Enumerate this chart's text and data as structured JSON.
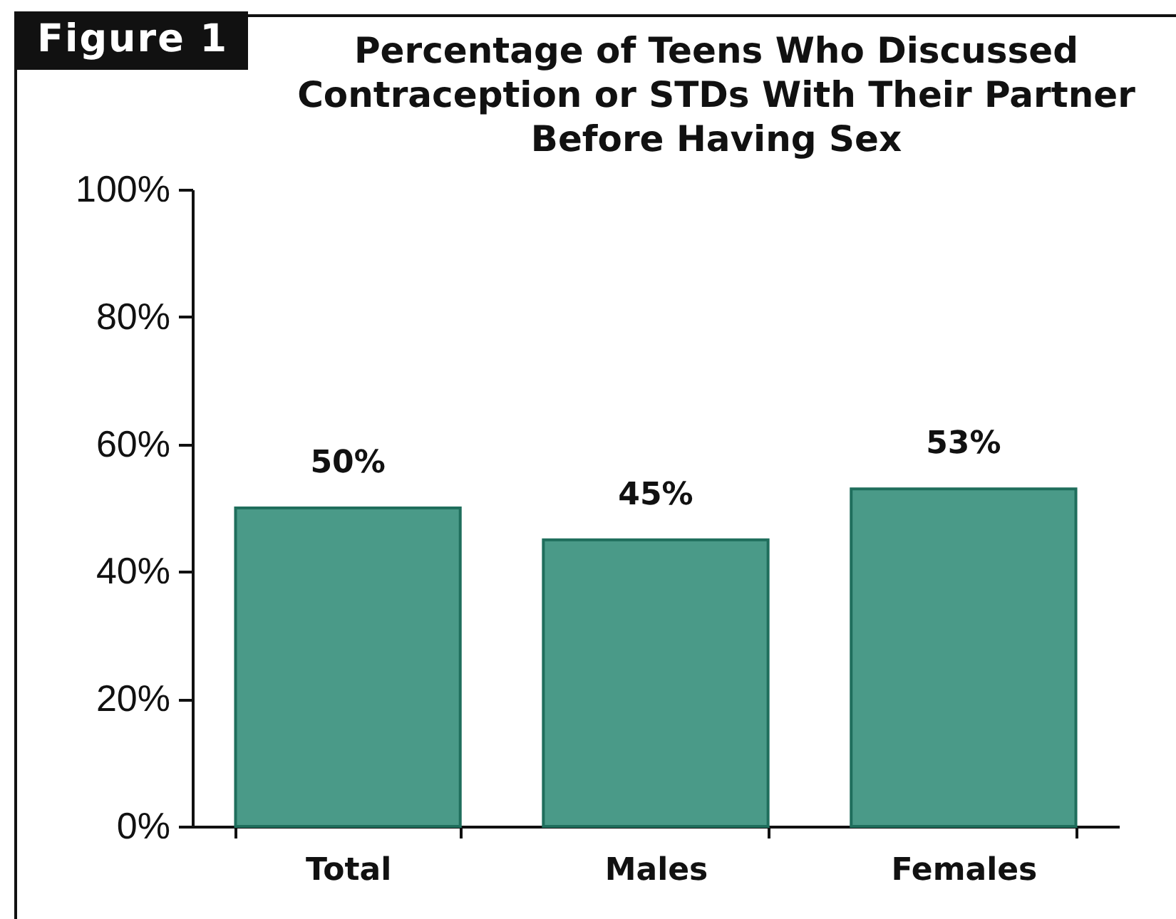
{
  "chart_data": {
    "type": "bar",
    "title": "Percentage of Teens Who Discussed Contraception or STDs With Their Partner Before Having Sex",
    "annotations": [
      "Figure 1"
    ],
    "categories": [
      "Total",
      "Males",
      "Females"
    ],
    "values": [
      50,
      45,
      53
    ],
    "value_labels": [
      "50%",
      "45%",
      "53%"
    ],
    "color": "#4a9a88",
    "ylim": [
      0,
      100
    ],
    "yticks": [
      {
        "value": 0,
        "label": "0%"
      },
      {
        "value": 20,
        "label": "20%"
      },
      {
        "value": 40,
        "label": "40%"
      },
      {
        "value": 60,
        "label": "60%"
      },
      {
        "value": 80,
        "label": "80%"
      },
      {
        "value": 100,
        "label": "100%"
      }
    ]
  }
}
